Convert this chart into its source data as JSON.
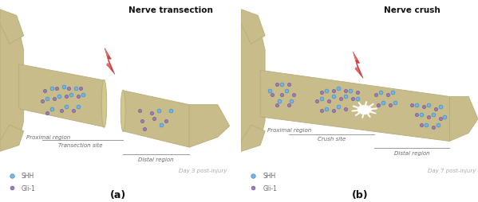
{
  "title_a": "Nerve transection",
  "title_b": "Nerve crush",
  "label_a": "(a)",
  "label_b": "(b)",
  "nerve_color": "#C8BC8A",
  "nerve_edge_color": "#B8AC7A",
  "nerve_dark": "#A89C6A",
  "background_color": "#FFFFFF",
  "shh_color": "#6EB5E8",
  "shh_edge": "#3A85C0",
  "gli_color": "#9B7DB8",
  "gli_edge": "#6A4A90",
  "proximal_label": "Proximal region",
  "transection_label": "Transection site",
  "crush_label": "Crush site",
  "distal_label": "Distal region",
  "day_a_label": "Day 3 post-injury",
  "day_b_label": "Day 7 post-injury",
  "shh_label": "SHH",
  "gli_label": "Gli-1",
  "text_color": "#666666",
  "title_color": "#111111"
}
